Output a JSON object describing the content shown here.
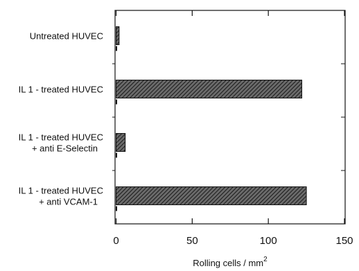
{
  "chart_data": {
    "type": "bar",
    "orientation": "horizontal",
    "categories": [
      [
        "Untreated HUVEC"
      ],
      [
        "IL 1 - treated HUVEC"
      ],
      [
        "IL 1 - treated HUVEC",
        "+ anti E-Selectin"
      ],
      [
        "IL 1 - treated HUVEC",
        "+ anti VCAM-1"
      ]
    ],
    "series": [
      {
        "values": [
          2,
          122,
          6,
          125
        ]
      }
    ],
    "xlabel": "Rolling cells / mm",
    "xlabel_superscript": "2",
    "xlim": [
      0,
      150
    ],
    "xticks": [
      "0",
      "50",
      "100",
      "150"
    ],
    "grid": false,
    "bar_fill": "diagonal-hatch",
    "colors": {
      "bar_fill": "#5a5a5a",
      "bar_hatch": "#1a1a1a",
      "axis": "#111111"
    }
  }
}
